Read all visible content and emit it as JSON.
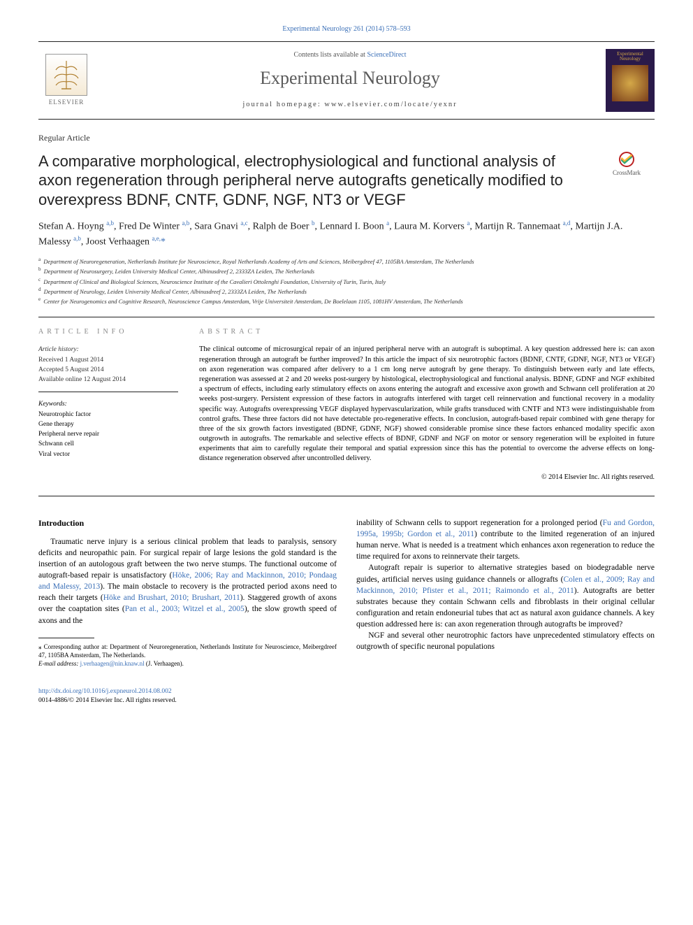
{
  "header_citation_link": "Experimental Neurology 261 (2014) 578–593",
  "masthead": {
    "elsevier_label": "ELSEVIER",
    "contents_prefix": "Contents lists available at ",
    "contents_link": "ScienceDirect",
    "journal_name": "Experimental Neurology",
    "homepage_text": "journal homepage: www.elsevier.com/locate/yexnr",
    "cover_title": "Experimental Neurology"
  },
  "article_type": "Regular Article",
  "title": "A comparative morphological, electrophysiological and functional analysis of axon regeneration through peripheral nerve autografts genetically modified to overexpress BDNF, CNTF, GDNF, NGF, NT3 or VEGF",
  "crossmark_label": "CrossMark",
  "authors_html": "Stefan A. Hoyng <sup>a,b</sup>, Fred De Winter <sup>a,b</sup>, Sara Gnavi <sup>a,c</sup>, Ralph de Boer <sup>b</sup>, Lennard I. Boon <sup>a</sup>, Laura M. Korvers <sup>a</sup>, Martijn R. Tannemaat <sup>a,d</sup>, Martijn J.A. Malessy <sup>a,b</sup>, Joost Verhaagen <sup>a,e,</sup>",
  "affiliations": [
    {
      "sup": "a",
      "text": "Department of Neuroregeneration, Netherlands Institute for Neuroscience, Royal Netherlands Academy of Arts and Sciences, Meibergdreef 47, 1105BA Amsterdam, The Netherlands"
    },
    {
      "sup": "b",
      "text": "Department of Neurosurgery, Leiden University Medical Center, Albinusdreef 2, 2333ZA Leiden, The Netherlands"
    },
    {
      "sup": "c",
      "text": "Department of Clinical and Biological Sciences, Neuroscience Institute of the Cavalieri Ottolenghi Foundation, University of Turin, Turin, Italy"
    },
    {
      "sup": "d",
      "text": "Department of Neurology, Leiden University Medical Center, Albinusdreef 2, 2333ZA Leiden, The Netherlands"
    },
    {
      "sup": "e",
      "text": "Center for Neurogenomics and Cognitive Research, Neuroscience Campus Amsterdam, Vrije Universiteit Amsterdam, De Boelelaan 1105, 1081HV Amsterdam, The Netherlands"
    }
  ],
  "article_info": {
    "heading": "ARTICLE INFO",
    "history_label": "Article history:",
    "received": "Received 1 August 2014",
    "accepted": "Accepted 5 August 2014",
    "available": "Available online 12 August 2014",
    "keywords_label": "Keywords:",
    "keywords": [
      "Neurotrophic factor",
      "Gene therapy",
      "Peripheral nerve repair",
      "Schwann cell",
      "Viral vector"
    ]
  },
  "abstract": {
    "heading": "ABSTRACT",
    "text": "The clinical outcome of microsurgical repair of an injured peripheral nerve with an autograft is suboptimal. A key question addressed here is: can axon regeneration through an autograft be further improved? In this article the impact of six neurotrophic factors (BDNF, CNTF, GDNF, NGF, NT3 or VEGF) on axon regeneration was compared after delivery to a 1 cm long nerve autograft by gene therapy. To distinguish between early and late effects, regeneration was assessed at 2 and 20 weeks post-surgery by histological, electrophysiological and functional analysis. BDNF, GDNF and NGF exhibited a spectrum of effects, including early stimulatory effects on axons entering the autograft and excessive axon growth and Schwann cell proliferation at 20 weeks post-surgery. Persistent expression of these factors in autografts interfered with target cell reinnervation and functional recovery in a modality specific way. Autografts overexpressing VEGF displayed hypervascularization, while grafts transduced with CNTF and NT3 were indistinguishable from control grafts. These three factors did not have detectable pro-regenerative effects. In conclusion, autograft-based repair combined with gene therapy for three of the six growth factors investigated (BDNF, GDNF, NGF) showed considerable promise since these factors enhanced modality specific axon outgrowth in autografts. The remarkable and selective effects of BDNF, GDNF and NGF on motor or sensory regeneration will be exploited in future experiments that aim to carefully regulate their temporal and spatial expression since this has the potential to overcome the adverse effects on long-distance regeneration observed after uncontrolled delivery.",
    "copyright": "© 2014 Elsevier Inc. All rights reserved."
  },
  "body": {
    "intro_heading": "Introduction",
    "col1_p1_pre": "Traumatic nerve injury is a serious clinical problem that leads to paralysis, sensory deficits and neuropathic pain. For surgical repair of large lesions the gold standard is the insertion of an autologous graft between the two nerve stumps. The functional outcome of autograft-based repair is unsatisfactory (",
    "ref1": "Höke, 2006; Ray and Mackinnon, 2010; Pondaag and Malessy, 2013",
    "col1_p1_mid1": "). The main obstacle to recovery is the protracted period axons need to reach their targets (",
    "ref2": "Höke and Brushart, 2010; Brushart, 2011",
    "col1_p1_mid2": "). Staggered growth of axons over the coaptation sites (",
    "ref3": "Pan et al., 2003; Witzel et al., 2005",
    "col1_p1_post": "), the slow growth speed of axons and the",
    "col2_p1_pre": "inability of Schwann cells to support regeneration for a prolonged period (",
    "ref4": "Fu and Gordon, 1995a, 1995b; Gordon et al., 2011",
    "col2_p1_post": ") contribute to the limited regeneration of an injured human nerve. What is needed is a treatment which enhances axon regeneration to reduce the time required for axons to reinnervate their targets.",
    "col2_p2_pre": "Autograft repair is superior to alternative strategies based on biodegradable nerve guides, artificial nerves using guidance channels or allografts (",
    "ref5": "Colen et al., 2009; Ray and Mackinnon, 2010; Pfister et al., 2011; Raimondo et al., 2011",
    "col2_p2_post": "). Autografts are better substrates because they contain Schwann cells and fibroblasts in their original cellular configuration and retain endoneurial tubes that act as natural axon guidance channels. A key question addressed here is: can axon regeneration through autografts be improved?",
    "col2_p3": "NGF and several other neurotrophic factors have unprecedented stimulatory effects on outgrowth of specific neuronal populations"
  },
  "footnote": {
    "corr_label": "⁎ Corresponding author at: Department of Neuroregeneration, Netherlands Institute for Neuroscience, Meibergdreef 47, 1105BA Amsterdam, The Netherlands.",
    "email_label": "E-mail address: ",
    "email": "j.verhaagen@nin.knaw.nl",
    "email_who": " (J. Verhaagen)."
  },
  "footer": {
    "doi": "http://dx.doi.org/10.1016/j.expneurol.2014.08.002",
    "issn_line": "0014-4886/© 2014 Elsevier Inc. All rights reserved."
  },
  "colors": {
    "link": "#3a6fb7",
    "text": "#000000",
    "heading_gray": "#888888",
    "cover_bg": "#2a1a4a",
    "cover_fg": "#d4a848"
  }
}
